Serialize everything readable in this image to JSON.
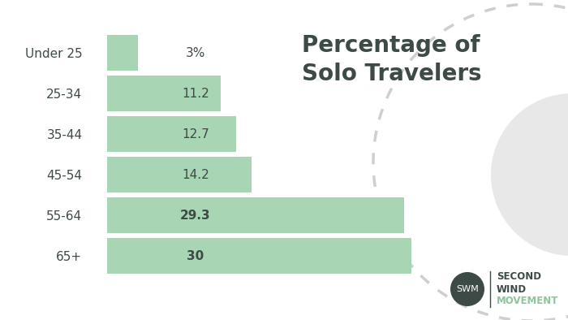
{
  "chart_data": {
    "type": "bar",
    "orientation": "horizontal",
    "title": "Percentage of Solo Travelers",
    "categories": [
      "Under 25",
      "25-34",
      "35-44",
      "45-54",
      "55-64",
      "65+"
    ],
    "values": [
      3,
      11.2,
      12.7,
      14.2,
      29.3,
      30
    ],
    "value_labels": [
      "3%",
      "11.2",
      "12.7",
      "14.2",
      "29.3",
      "30"
    ],
    "data_labels": true,
    "color": "#a8d5b4",
    "xlim": [
      0,
      30
    ],
    "xticks": [],
    "tick_labels": "y",
    "grid": false,
    "annotations": [
      "SWM",
      "SECOND",
      "WIND",
      "MOVEMENT"
    ]
  }
}
